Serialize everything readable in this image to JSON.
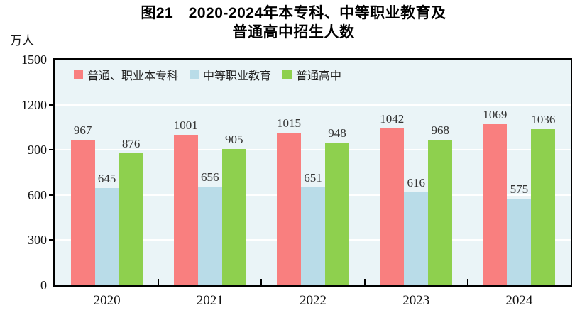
{
  "title": {
    "line1": "图21　2020-2024年本专科、中等职业教育及",
    "line2": "普通高中招生人数"
  },
  "unit_label": "万人",
  "chart_data": {
    "type": "bar",
    "title": "图21 2020-2024年本专科、中等职业教育及普通高中招生人数",
    "xlabel": "",
    "ylabel": "万人",
    "ylim": [
      0,
      1500
    ],
    "yticks": [
      0,
      300,
      600,
      900,
      1200,
      1500
    ],
    "grid": true,
    "legend_position": "top-left-inside",
    "data_labels": true,
    "categories": [
      "2020",
      "2021",
      "2022",
      "2023",
      "2024"
    ],
    "series": [
      {
        "name": "普通、职业本专科",
        "color": "#f97f7f",
        "values": [
          967,
          1001,
          1015,
          1042,
          1069
        ]
      },
      {
        "name": "中等职业教育",
        "color": "#b9dce8",
        "values": [
          645,
          656,
          651,
          616,
          575
        ]
      },
      {
        "name": "普通高中",
        "color": "#8ed04e",
        "values": [
          876,
          905,
          948,
          968,
          1036
        ]
      }
    ]
  },
  "colors": {
    "plot_background": "#eaf4f7",
    "gridline": "#ffffff",
    "axis": "#000000",
    "label_text": "#333333"
  }
}
